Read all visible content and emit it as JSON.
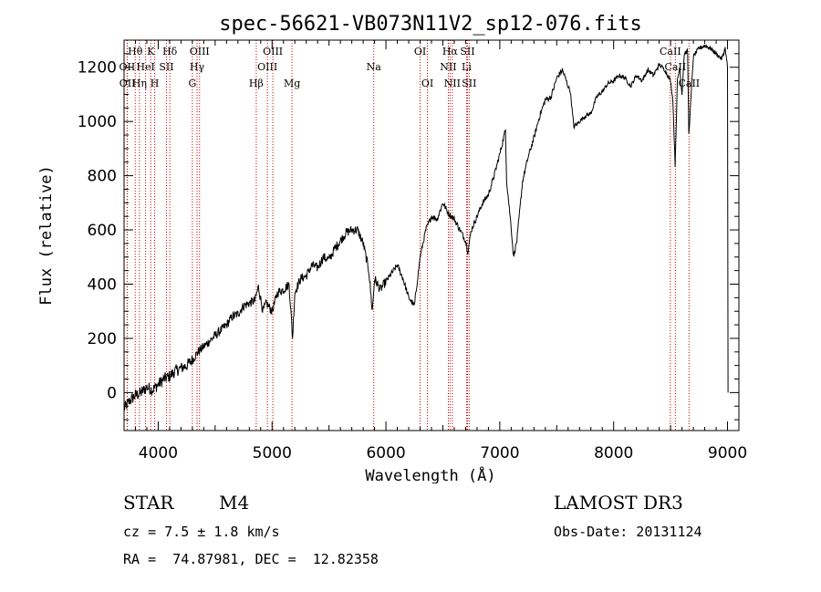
{
  "chart_data": {
    "type": "line",
    "title": "spec-56621-VB073N11V2_sp12-076.fits",
    "xlabel": "Wavelength (Å)",
    "ylabel": "Flux (relative)",
    "xlim": [
      3700,
      9100
    ],
    "ylim": [
      -140,
      1300
    ],
    "xticks": [
      4000,
      5000,
      6000,
      7000,
      8000,
      9000
    ],
    "yticks": [
      0,
      200,
      400,
      600,
      800,
      1000,
      1200
    ],
    "x": [
      3700,
      3750,
      3800,
      3850,
      3900,
      3950,
      4000,
      4050,
      4100,
      4150,
      4200,
      4250,
      4300,
      4350,
      4400,
      4450,
      4500,
      4550,
      4600,
      4650,
      4700,
      4750,
      4800,
      4850,
      4880,
      4920,
      4950,
      5000,
      5050,
      5100,
      5150,
      5180,
      5200,
      5250,
      5300,
      5350,
      5400,
      5450,
      5500,
      5550,
      5600,
      5650,
      5700,
      5750,
      5800,
      5850,
      5880,
      5900,
      5950,
      6000,
      6050,
      6100,
      6150,
      6200,
      6250,
      6300,
      6350,
      6400,
      6450,
      6500,
      6550,
      6600,
      6650,
      6700,
      6720,
      6750,
      6800,
      6850,
      6900,
      6950,
      7000,
      7050,
      7060,
      7100,
      7120,
      7150,
      7200,
      7250,
      7300,
      7350,
      7400,
      7450,
      7500,
      7550,
      7600,
      7620,
      7650,
      7700,
      7750,
      7800,
      7850,
      7900,
      7950,
      8000,
      8050,
      8100,
      8150,
      8200,
      8250,
      8300,
      8350,
      8400,
      8450,
      8500,
      8520,
      8540,
      8560,
      8580,
      8600,
      8620,
      8650,
      8660,
      8700,
      8750,
      8800,
      8850,
      8900,
      8950,
      8980,
      9000,
      9005
    ],
    "y": [
      -60,
      -30,
      -10,
      0,
      20,
      10,
      30,
      50,
      60,
      80,
      90,
      100,
      120,
      150,
      170,
      190,
      210,
      230,
      250,
      280,
      290,
      320,
      330,
      340,
      390,
      300,
      330,
      300,
      370,
      380,
      400,
      200,
      370,
      420,
      430,
      470,
      460,
      500,
      490,
      530,
      560,
      590,
      600,
      600,
      550,
      450,
      300,
      420,
      380,
      410,
      440,
      470,
      420,
      350,
      320,
      500,
      600,
      650,
      640,
      700,
      660,
      640,
      600,
      560,
      520,
      600,
      650,
      700,
      730,
      800,
      880,
      970,
      780,
      610,
      500,
      560,
      780,
      870,
      940,
      1020,
      1080,
      1090,
      1160,
      1190,
      1130,
      1110,
      980,
      1000,
      1020,
      1030,
      1090,
      1110,
      1140,
      1150,
      1170,
      1160,
      1130,
      1170,
      1150,
      1190,
      1170,
      1210,
      1190,
      1150,
      1080,
      840,
      1150,
      1200,
      1100,
      1250,
      1260,
      950,
      1240,
      1270,
      1280,
      1270,
      1250,
      1230,
      1270,
      1200,
      0
    ],
    "lines": [
      {
        "label": "Hθ",
        "wavelength": 3798,
        "row": 0
      },
      {
        "label": "OII",
        "wavelength": 3727,
        "row": 1
      },
      {
        "label": "OII",
        "wavelength": 3729,
        "row": 2
      },
      {
        "label": "Hη",
        "wavelength": 3835,
        "row": 2
      },
      {
        "label": "HeI",
        "wavelength": 3889,
        "row": 1
      },
      {
        "label": "K",
        "wavelength": 3934,
        "row": 0
      },
      {
        "label": "H",
        "wavelength": 3969,
        "row": 2
      },
      {
        "label": "SII",
        "wavelength": 4072,
        "row": 1
      },
      {
        "label": "Hδ",
        "wavelength": 4102,
        "row": 0
      },
      {
        "label": "OIII",
        "wavelength": 4363,
        "row": 0
      },
      {
        "label": "Hγ",
        "wavelength": 4341,
        "row": 1
      },
      {
        "label": "G",
        "wavelength": 4300,
        "row": 2
      },
      {
        "label": "Hβ",
        "wavelength": 4861,
        "row": 2
      },
      {
        "label": "OIII",
        "wavelength": 5007,
        "row": 0
      },
      {
        "label": "OIII",
        "wavelength": 4959,
        "row": 1
      },
      {
        "label": "Mg",
        "wavelength": 5175,
        "row": 2
      },
      {
        "label": "Na",
        "wavelength": 5893,
        "row": 1
      },
      {
        "label": "OI",
        "wavelength": 6300,
        "row": 0
      },
      {
        "label": "OI",
        "wavelength": 6364,
        "row": 2
      },
      {
        "label": "Hα",
        "wavelength": 6563,
        "row": 0
      },
      {
        "label": "NII",
        "wavelength": 6548,
        "row": 1
      },
      {
        "label": "NII",
        "wavelength": 6583,
        "row": 2
      },
      {
        "label": "SII",
        "wavelength": 6716,
        "row": 0
      },
      {
        "label": "Li",
        "wavelength": 6708,
        "row": 1
      },
      {
        "label": "SII",
        "wavelength": 6731,
        "row": 2
      },
      {
        "label": "CaII",
        "wavelength": 8498,
        "row": 0
      },
      {
        "label": "CaII",
        "wavelength": 8542,
        "row": 1
      },
      {
        "label": "CaII",
        "wavelength": 8662,
        "row": 2
      }
    ],
    "line_color": "#000000",
    "marker_color": "#cc0000"
  },
  "info": {
    "object_class": "STAR",
    "subclass": "M4",
    "survey": "LAMOST DR3",
    "cz": "cz = 7.5 ± 1.8 km/s",
    "obs_date": "Obs-Date: 20131124",
    "radec": "RA =  74.87981, DEC =  12.82358"
  }
}
